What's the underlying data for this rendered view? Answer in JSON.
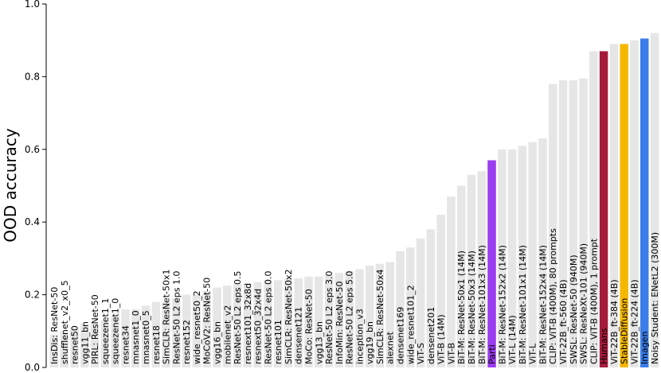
{
  "chart_data": {
    "type": "bar",
    "ylabel": "OOD accuracy",
    "categories": [
      "InsDis: ResNet-50",
      "shufflenet_v2_x0_5",
      "resnet50",
      "vgg11_bn",
      "PIRL: ResNet-50",
      "squeezenet1_1",
      "squeezenet1_0",
      "resnet34",
      "mnasnet1_0",
      "mnasnet0_5",
      "resnet18",
      "SimCLR: ResNet-50x1",
      "ResNet-50 L2 eps 1.0",
      "resnet152",
      "wide_resnet50_2",
      "MoCoV2: ResNet-50",
      "vgg16_bn",
      "mobilenet_v2",
      "ResNet-50 L2 eps 0.5",
      "resnext101_32x8d",
      "resnext50_32x4d",
      "ResNet-50 L2 eps 0.0",
      "resnet101",
      "SimCLR: ResNet-50x2",
      "densenet121",
      "MoCo: ResNet-50",
      "vgg13_bn",
      "ResNet-50 L2 eps 3.0",
      "InfoMin: ResNet-50",
      "ResNet-50 L2 eps 5.0",
      "inception_v3",
      "vgg19_bn",
      "SimCLR: ResNet-50x4",
      "alexnet",
      "densenet169",
      "wide_resnet101_2",
      "ViT-S",
      "densenet201",
      "ViT-B (14M)",
      "ViT-B",
      "BiT-M: ResNet-50x1 (14M)",
      "BiT-M: ResNet-50x3 (14M)",
      "BiT-M: ResNet-101x3 (14M)",
      "Parti",
      "BiT-M: ResNet-152x2 (14M)",
      "ViT-L (14M)",
      "BiT-M: ResNet-101x1 (14M)",
      "ViT-L",
      "BiT-M: ResNet-152x4 (14M)",
      "CLIP: ViT-B (400M), 80 prompts",
      "ViT-22B_ft-560 (4B)",
      "SWSL: ResNet-50 (940M)",
      "SWSL: ResNeXt-101 (940M)",
      "CLIP: ViT-B (400M), 1 prompt",
      "Humans",
      "ViT-22B_ft-384 (4B)",
      "StableDiffusion",
      "ViT-22B_ft-224 (4B)",
      "Imagen",
      "Noisy Student: ENetL2 (300M)"
    ],
    "values": [
      0.09,
      0.1,
      0.11,
      0.12,
      0.12,
      0.13,
      0.14,
      0.16,
      0.16,
      0.17,
      0.18,
      0.18,
      0.19,
      0.2,
      0.2,
      0.21,
      0.22,
      0.225,
      0.23,
      0.23,
      0.235,
      0.24,
      0.24,
      0.245,
      0.245,
      0.25,
      0.25,
      0.255,
      0.26,
      0.265,
      0.27,
      0.28,
      0.285,
      0.29,
      0.32,
      0.33,
      0.355,
      0.38,
      0.42,
      0.47,
      0.5,
      0.53,
      0.54,
      0.57,
      0.6,
      0.6,
      0.61,
      0.62,
      0.63,
      0.78,
      0.79,
      0.79,
      0.795,
      0.87,
      0.87,
      0.89,
      0.89,
      0.9,
      0.905,
      0.92
    ],
    "color": "#e6e6e6",
    "highlight_colors": {
      "Parti": "#9b3cf0",
      "Humans": "#a51c3a",
      "StableDiffusion": "#f5b800",
      "Imagen": "#3b7de8"
    },
    "ylim": [
      0,
      1
    ],
    "yticks": [
      {
        "value": 0,
        "label": "0.0"
      },
      0.2,
      0.4,
      0.6,
      0.8,
      {
        "value": 1,
        "label": "1.0"
      }
    ]
  }
}
